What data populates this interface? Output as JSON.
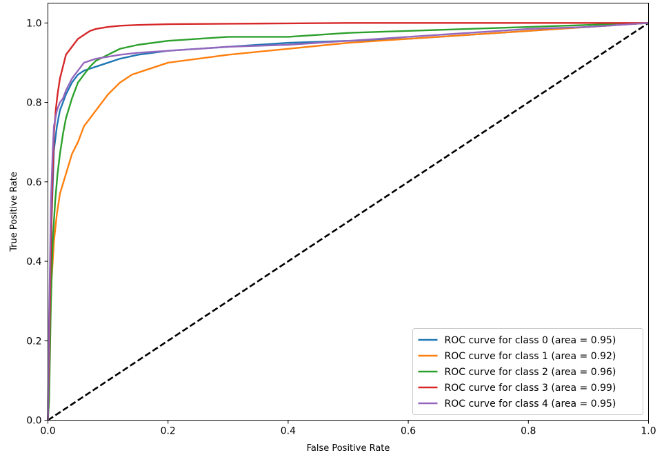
{
  "chart_data": {
    "type": "line",
    "title": "",
    "xlabel": "False Positive Rate",
    "ylabel": "True Positive Rate",
    "xlim": [
      0.0,
      1.0
    ],
    "ylim": [
      0.0,
      1.05
    ],
    "x_ticks": [
      "0.0",
      "0.2",
      "0.4",
      "0.6",
      "0.8",
      "1.0"
    ],
    "y_ticks": [
      "0.0",
      "0.2",
      "0.4",
      "0.6",
      "0.8",
      "1.0"
    ],
    "grid": false,
    "legend_position": "bottom-right",
    "series": [
      {
        "name": "ROC curve for class 0 (area = 0.95)",
        "color": "#1f77b4",
        "x": [
          0.0,
          0.003,
          0.006,
          0.01,
          0.015,
          0.02,
          0.025,
          0.03,
          0.04,
          0.05,
          0.06,
          0.08,
          0.1,
          0.12,
          0.15,
          0.2,
          0.25,
          0.3,
          0.4,
          0.5,
          0.6,
          0.7,
          0.8,
          0.9,
          1.0
        ],
        "y": [
          0.0,
          0.2,
          0.5,
          0.68,
          0.74,
          0.78,
          0.8,
          0.82,
          0.85,
          0.87,
          0.88,
          0.89,
          0.9,
          0.91,
          0.92,
          0.93,
          0.935,
          0.94,
          0.95,
          0.955,
          0.96,
          0.97,
          0.98,
          0.99,
          1.0
        ]
      },
      {
        "name": "ROC curve for class 1 (area = 0.92)",
        "color": "#ff7f0e",
        "x": [
          0.0,
          0.003,
          0.006,
          0.01,
          0.015,
          0.02,
          0.03,
          0.04,
          0.05,
          0.06,
          0.07,
          0.08,
          0.1,
          0.12,
          0.14,
          0.16,
          0.2,
          0.25,
          0.3,
          0.4,
          0.5,
          0.6,
          0.7,
          0.8,
          0.9,
          1.0
        ],
        "y": [
          0.0,
          0.2,
          0.35,
          0.45,
          0.52,
          0.57,
          0.62,
          0.67,
          0.7,
          0.74,
          0.76,
          0.78,
          0.82,
          0.85,
          0.87,
          0.88,
          0.9,
          0.91,
          0.92,
          0.935,
          0.95,
          0.96,
          0.97,
          0.98,
          0.99,
          1.0
        ]
      },
      {
        "name": "ROC curve for class 2 (area = 0.96)",
        "color": "#2ca02c",
        "x": [
          0.0,
          0.002,
          0.005,
          0.008,
          0.012,
          0.016,
          0.02,
          0.025,
          0.03,
          0.04,
          0.05,
          0.06,
          0.07,
          0.08,
          0.1,
          0.12,
          0.15,
          0.2,
          0.25,
          0.3,
          0.4,
          0.5,
          0.6,
          0.7,
          0.8,
          0.9,
          0.96,
          1.0
        ],
        "y": [
          0.0,
          0.05,
          0.3,
          0.45,
          0.55,
          0.62,
          0.67,
          0.72,
          0.76,
          0.81,
          0.85,
          0.87,
          0.89,
          0.905,
          0.92,
          0.935,
          0.945,
          0.955,
          0.96,
          0.965,
          0.965,
          0.975,
          0.98,
          0.985,
          0.99,
          0.995,
          0.998,
          1.0
        ]
      },
      {
        "name": "ROC curve for class 3 (area = 0.99)",
        "color": "#d62728",
        "x": [
          0.0,
          0.002,
          0.004,
          0.006,
          0.008,
          0.01,
          0.013,
          0.016,
          0.02,
          0.025,
          0.03,
          0.04,
          0.05,
          0.06,
          0.07,
          0.08,
          0.1,
          0.12,
          0.15,
          0.2,
          0.3,
          0.4,
          0.5,
          0.6,
          0.8,
          1.0
        ],
        "y": [
          0.0,
          0.15,
          0.35,
          0.52,
          0.63,
          0.72,
          0.78,
          0.82,
          0.86,
          0.89,
          0.92,
          0.94,
          0.96,
          0.97,
          0.98,
          0.985,
          0.99,
          0.993,
          0.995,
          0.997,
          0.998,
          0.999,
          1.0,
          1.0,
          1.0,
          1.0
        ]
      },
      {
        "name": "ROC curve for class 4 (area = 0.95)",
        "color": "#9467bd",
        "x": [
          0.0,
          0.002,
          0.005,
          0.008,
          0.01,
          0.015,
          0.02,
          0.025,
          0.03,
          0.04,
          0.05,
          0.06,
          0.08,
          0.1,
          0.12,
          0.15,
          0.2,
          0.25,
          0.3,
          0.4,
          0.5,
          0.6,
          0.7,
          0.8,
          0.9,
          1.0
        ],
        "y": [
          0.0,
          0.25,
          0.55,
          0.68,
          0.74,
          0.78,
          0.8,
          0.81,
          0.83,
          0.86,
          0.88,
          0.9,
          0.91,
          0.915,
          0.92,
          0.925,
          0.93,
          0.935,
          0.94,
          0.945,
          0.955,
          0.965,
          0.975,
          0.985,
          0.99,
          1.0
        ]
      },
      {
        "name": "",
        "color": "#000000",
        "dashed": true,
        "x": [
          0.0,
          1.0
        ],
        "y": [
          0.0,
          1.0
        ]
      }
    ]
  }
}
